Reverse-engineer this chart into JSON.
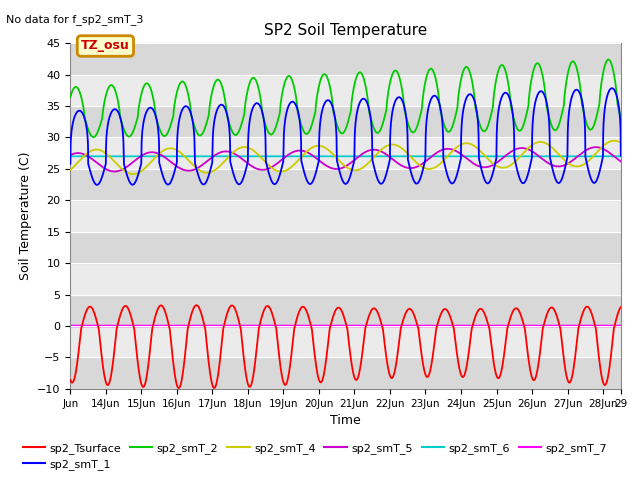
{
  "title": "SP2 Soil Temperature",
  "ylabel": "Soil Temperature (C)",
  "xlabel": "Time",
  "note": "No data for f_sp2_smT_3",
  "tz_label": "TZ_osu",
  "ylim": [
    -10,
    45
  ],
  "yticks": [
    -10,
    -5,
    0,
    5,
    10,
    15,
    20,
    25,
    30,
    35,
    40,
    45
  ],
  "x_tick_positions": [
    0,
    1,
    2,
    3,
    4,
    5,
    6,
    7,
    8,
    9,
    10,
    11,
    12,
    13,
    14,
    15,
    15.5
  ],
  "x_tick_labels": [
    "Jun",
    "14Jun",
    "15Jun",
    "16Jun",
    "17Jun",
    "18Jun",
    "19Jun",
    "20Jun",
    "21Jun",
    "22Jun",
    "23Jun",
    "24Jun",
    "25Jun",
    "26Jun",
    "27Jun",
    "28Jun",
    "29"
  ],
  "legend_entries": [
    {
      "label": "sp2_Tsurface",
      "color": "#ff0000"
    },
    {
      "label": "sp2_smT_1",
      "color": "#0000ff"
    },
    {
      "label": "sp2_smT_2",
      "color": "#00cc00"
    },
    {
      "label": "sp2_smT_4",
      "color": "#ffff00"
    },
    {
      "label": "sp2_smT_5",
      "color": "#cc00cc"
    },
    {
      "label": "sp2_smT_6",
      "color": "#00cccc"
    },
    {
      "label": "sp2_smT_7",
      "color": "#ff00ff"
    }
  ],
  "bg_color": "#ffffff",
  "plot_bg_color_light": "#f0f0f0",
  "plot_bg_color_dark": "#e0e0e0"
}
